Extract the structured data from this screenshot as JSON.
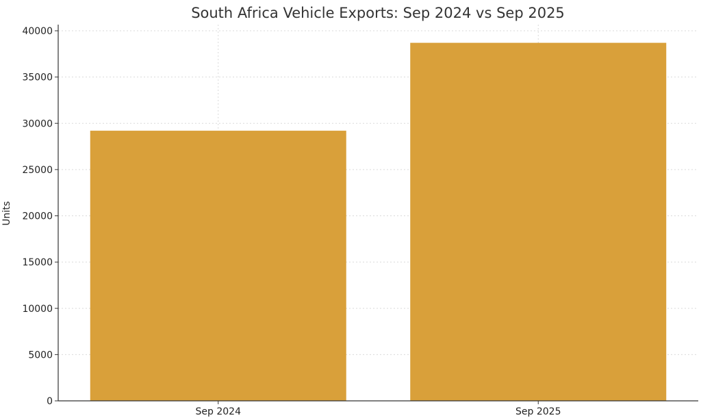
{
  "chart_data": {
    "type": "bar",
    "title": "South Africa Vehicle Exports: Sep 2024 vs Sep 2025",
    "xlabel": "",
    "ylabel": "Units",
    "categories": [
      "Sep 2024",
      "Sep 2025"
    ],
    "values": [
      29200,
      38700
    ],
    "ylim": [
      0,
      40000
    ],
    "yticks": [
      0,
      5000,
      10000,
      15000,
      20000,
      25000,
      30000,
      35000,
      40000
    ],
    "bar_color": "#D9A03A",
    "grid": true,
    "legend": "none"
  }
}
